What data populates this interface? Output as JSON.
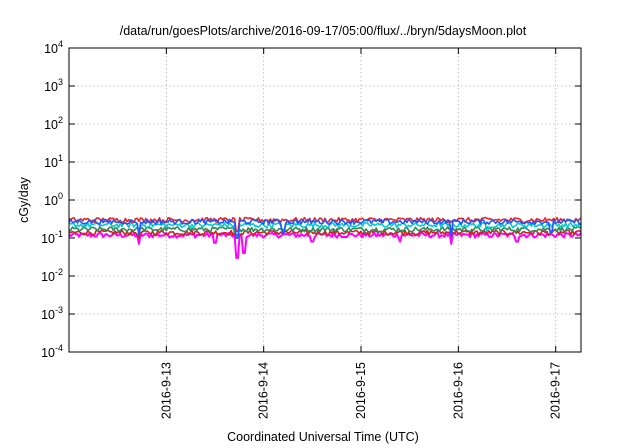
{
  "chart_data": {
    "type": "line",
    "title": "/data/run/goesPlots/archive/2016-09-17/05:00/flux/../bryn/5daysMoon.plot",
    "xlabel": "Coordinated Universal Time (UTC)",
    "ylabel": "cGy/day",
    "yscale": "log",
    "ylim": [
      0.0001,
      10000
    ],
    "xlim": [
      0,
      5.26
    ],
    "grid": true,
    "x_ticks": [
      {
        "label": "2016-9-13",
        "value": 1
      },
      {
        "label": "2016-9-14",
        "value": 2
      },
      {
        "label": "2016-9-15",
        "value": 3
      },
      {
        "label": "2016-9-16",
        "value": 4
      },
      {
        "label": "2016-9-17",
        "value": 5
      }
    ],
    "y_ticks": [
      {
        "base": "10",
        "exp": "-4",
        "value": 0.0001
      },
      {
        "base": "10",
        "exp": "-3",
        "value": 0.001
      },
      {
        "base": "10",
        "exp": "-2",
        "value": 0.01
      },
      {
        "base": "10",
        "exp": "-1",
        "value": 0.1
      },
      {
        "base": "10",
        "exp": "0",
        "value": 1
      },
      {
        "base": "10",
        "exp": "1",
        "value": 10
      },
      {
        "base": "10",
        "exp": "2",
        "value": 100
      },
      {
        "base": "10",
        "exp": "3",
        "value": 1000
      },
      {
        "base": "10",
        "exp": "4",
        "value": 10000
      }
    ],
    "series": [
      {
        "color": "#ff00ff",
        "base": 0.12,
        "dips": [
          [
            0.72,
            0.07
          ],
          [
            1.5,
            0.075
          ],
          [
            1.73,
            0.03
          ],
          [
            1.8,
            0.04
          ],
          [
            2.5,
            0.08
          ],
          [
            3.4,
            0.08
          ],
          [
            3.93,
            0.07
          ],
          [
            4.6,
            0.08
          ]
        ]
      },
      {
        "color": "#cc2222",
        "base": 0.14,
        "dips": [
          [
            0.72,
            0.1
          ],
          [
            1.73,
            0.1
          ]
        ]
      },
      {
        "color": "#2e8b57",
        "base": 0.17,
        "dips": [
          [
            1.73,
            0.12
          ]
        ]
      },
      {
        "color": "#00cccc",
        "base": 0.22,
        "dips": [
          [
            0.72,
            0.12
          ],
          [
            1.73,
            0.1
          ],
          [
            2.2,
            0.15
          ],
          [
            3.93,
            0.12
          ],
          [
            4.3,
            0.15
          ]
        ]
      },
      {
        "color": "#ee2222",
        "base": 0.3,
        "dips": [
          [
            1.73,
            0.15
          ]
        ]
      },
      {
        "color": "#2255ff",
        "base": 0.27,
        "dips": [
          [
            0.72,
            0.12
          ],
          [
            1.73,
            0.1
          ],
          [
            2.2,
            0.14
          ],
          [
            3.93,
            0.11
          ],
          [
            4.95,
            0.14
          ]
        ]
      }
    ]
  }
}
